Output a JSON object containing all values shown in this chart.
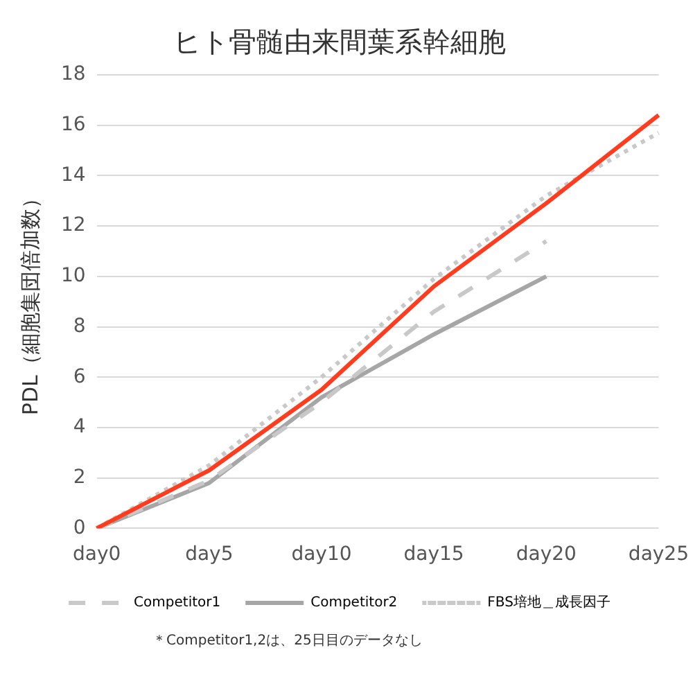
{
  "chart_data": {
    "type": "line",
    "title": "ヒト骨髄由来間葉系幹細胞",
    "ylabel": "PDL（細胞集団倍加数）",
    "categories": [
      "day0",
      "day5",
      "day10",
      "day15",
      "day20",
      "day25"
    ],
    "series": [
      {
        "color": "#ff3c1e",
        "values": [
          0,
          2.3,
          5.5,
          9.6,
          12.9,
          16.4
        ]
      },
      {
        "name": "Competitor1",
        "color": "#c8c8c8",
        "line_style": "dashed",
        "values": [
          0,
          1.9,
          5.0,
          8.6,
          11.4,
          null
        ]
      },
      {
        "name": "Competitor2",
        "color": "#a6a6a6",
        "values": [
          0,
          1.8,
          5.2,
          7.7,
          10.0,
          null
        ]
      },
      {
        "name": "FBS培地＿成長因子",
        "color": "#c8c8c8",
        "line_style": "dotted",
        "values": [
          0,
          2.5,
          6.0,
          9.9,
          13.2,
          15.7
        ]
      }
    ],
    "ylim": [
      0,
      18
    ],
    "yticks": [
      0,
      2,
      4,
      6,
      8,
      10,
      12,
      14,
      16,
      18
    ],
    "grid": "y",
    "legend": "bottom",
    "marker": "none",
    "annotations": [
      "＊Competitor1,2は、25日目のデータなし"
    ]
  }
}
